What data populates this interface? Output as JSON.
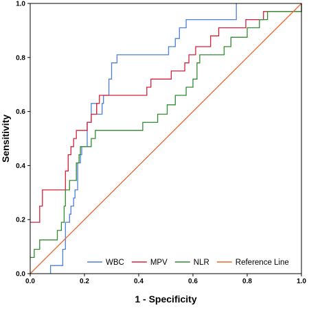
{
  "chart_data": {
    "type": "line",
    "title": "",
    "xlabel": "1 - Specificity",
    "ylabel": "Sensitivity",
    "xlim": [
      0,
      1
    ],
    "ylim": [
      0,
      1
    ],
    "x_ticks": [
      "0.0",
      "0.2",
      "0.4",
      "0.6",
      "0.8",
      "1.0"
    ],
    "y_ticks": [
      "0.0",
      "0.2",
      "0.4",
      "0.6",
      "0.8",
      "1.0"
    ],
    "grid": false,
    "legend_position": "bottom-right",
    "series": [
      {
        "name": "WBC",
        "color": "#4a7fd6",
        "points": [
          [
            0.075,
            0
          ],
          [
            0.075,
            0.03
          ],
          [
            0.12,
            0.03
          ],
          [
            0.12,
            0.09
          ],
          [
            0.13,
            0.09
          ],
          [
            0.13,
            0.19
          ],
          [
            0.145,
            0.19
          ],
          [
            0.145,
            0.22
          ],
          [
            0.15,
            0.22
          ],
          [
            0.15,
            0.25
          ],
          [
            0.16,
            0.25
          ],
          [
            0.16,
            0.28
          ],
          [
            0.165,
            0.28
          ],
          [
            0.165,
            0.31
          ],
          [
            0.175,
            0.31
          ],
          [
            0.175,
            0.41
          ],
          [
            0.185,
            0.41
          ],
          [
            0.185,
            0.44
          ],
          [
            0.19,
            0.44
          ],
          [
            0.19,
            0.47
          ],
          [
            0.21,
            0.47
          ],
          [
            0.21,
            0.56
          ],
          [
            0.225,
            0.56
          ],
          [
            0.225,
            0.63
          ],
          [
            0.245,
            0.63
          ],
          [
            0.245,
            0.59
          ],
          [
            0.265,
            0.59
          ],
          [
            0.265,
            0.63
          ],
          [
            0.27,
            0.63
          ],
          [
            0.27,
            0.66
          ],
          [
            0.29,
            0.66
          ],
          [
            0.29,
            0.72
          ],
          [
            0.3,
            0.72
          ],
          [
            0.3,
            0.78
          ],
          [
            0.32,
            0.78
          ],
          [
            0.32,
            0.81
          ],
          [
            0.51,
            0.81
          ],
          [
            0.51,
            0.84
          ],
          [
            0.535,
            0.84
          ],
          [
            0.535,
            0.87
          ],
          [
            0.55,
            0.87
          ],
          [
            0.55,
            0.91
          ],
          [
            0.575,
            0.91
          ],
          [
            0.575,
            0.94
          ],
          [
            0.76,
            0.94
          ],
          [
            0.76,
            1.0
          ]
        ]
      },
      {
        "name": "MPV",
        "color": "#d61e38",
        "points": [
          [
            0,
            0.19
          ],
          [
            0.035,
            0.19
          ],
          [
            0.035,
            0.25
          ],
          [
            0.045,
            0.25
          ],
          [
            0.045,
            0.31
          ],
          [
            0.13,
            0.31
          ],
          [
            0.13,
            0.38
          ],
          [
            0.14,
            0.38
          ],
          [
            0.14,
            0.44
          ],
          [
            0.15,
            0.44
          ],
          [
            0.15,
            0.47
          ],
          [
            0.16,
            0.47
          ],
          [
            0.16,
            0.5
          ],
          [
            0.17,
            0.5
          ],
          [
            0.17,
            0.53
          ],
          [
            0.21,
            0.53
          ],
          [
            0.21,
            0.56
          ],
          [
            0.225,
            0.56
          ],
          [
            0.225,
            0.59
          ],
          [
            0.245,
            0.59
          ],
          [
            0.245,
            0.63
          ],
          [
            0.255,
            0.63
          ],
          [
            0.255,
            0.66
          ],
          [
            0.43,
            0.66
          ],
          [
            0.43,
            0.69
          ],
          [
            0.445,
            0.69
          ],
          [
            0.445,
            0.72
          ],
          [
            0.52,
            0.72
          ],
          [
            0.52,
            0.75
          ],
          [
            0.57,
            0.75
          ],
          [
            0.57,
            0.78
          ],
          [
            0.585,
            0.78
          ],
          [
            0.585,
            0.81
          ],
          [
            0.61,
            0.81
          ],
          [
            0.61,
            0.84
          ],
          [
            0.665,
            0.84
          ],
          [
            0.665,
            0.88
          ],
          [
            0.695,
            0.88
          ],
          [
            0.695,
            0.91
          ],
          [
            0.795,
            0.91
          ],
          [
            0.795,
            0.94
          ],
          [
            0.86,
            0.94
          ],
          [
            0.86,
            0.97
          ],
          [
            1.0,
            0.97
          ],
          [
            1.0,
            1.0
          ]
        ]
      },
      {
        "name": "NLR",
        "color": "#2e8b2e",
        "points": [
          [
            0,
            0.06
          ],
          [
            0.015,
            0.06
          ],
          [
            0.015,
            0.09
          ],
          [
            0.035,
            0.09
          ],
          [
            0.035,
            0.125
          ],
          [
            0.1,
            0.125
          ],
          [
            0.1,
            0.16
          ],
          [
            0.115,
            0.16
          ],
          [
            0.115,
            0.19
          ],
          [
            0.125,
            0.19
          ],
          [
            0.125,
            0.25
          ],
          [
            0.13,
            0.25
          ],
          [
            0.13,
            0.31
          ],
          [
            0.145,
            0.31
          ],
          [
            0.145,
            0.345
          ],
          [
            0.17,
            0.345
          ],
          [
            0.17,
            0.41
          ],
          [
            0.18,
            0.41
          ],
          [
            0.18,
            0.44
          ],
          [
            0.185,
            0.44
          ],
          [
            0.185,
            0.47
          ],
          [
            0.225,
            0.47
          ],
          [
            0.225,
            0.5
          ],
          [
            0.24,
            0.5
          ],
          [
            0.24,
            0.53
          ],
          [
            0.415,
            0.53
          ],
          [
            0.415,
            0.56
          ],
          [
            0.47,
            0.56
          ],
          [
            0.47,
            0.59
          ],
          [
            0.505,
            0.59
          ],
          [
            0.505,
            0.625
          ],
          [
            0.535,
            0.625
          ],
          [
            0.535,
            0.66
          ],
          [
            0.575,
            0.66
          ],
          [
            0.575,
            0.69
          ],
          [
            0.6,
            0.69
          ],
          [
            0.6,
            0.72
          ],
          [
            0.615,
            0.72
          ],
          [
            0.615,
            0.78
          ],
          [
            0.625,
            0.78
          ],
          [
            0.625,
            0.81
          ],
          [
            0.715,
            0.81
          ],
          [
            0.715,
            0.84
          ],
          [
            0.74,
            0.84
          ],
          [
            0.74,
            0.875
          ],
          [
            0.8,
            0.875
          ],
          [
            0.8,
            0.91
          ],
          [
            0.845,
            0.91
          ],
          [
            0.845,
            0.94
          ],
          [
            0.875,
            0.94
          ],
          [
            0.875,
            0.97
          ],
          [
            1.0,
            0.97
          ],
          [
            1.0,
            1.0
          ]
        ]
      },
      {
        "name": "Reference Line",
        "color": "#f0642a",
        "points": [
          [
            0,
            0
          ],
          [
            1,
            1
          ]
        ]
      }
    ]
  }
}
